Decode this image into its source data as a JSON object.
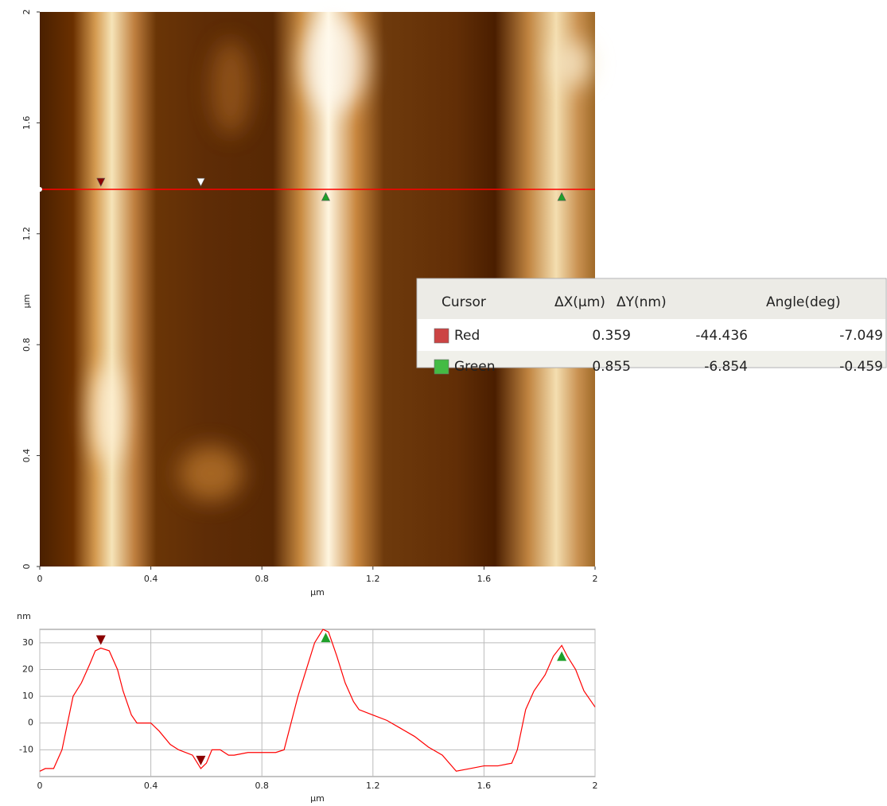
{
  "chart_data": {
    "type": "line",
    "yunit": "nm",
    "xlabel": "µm",
    "x": [
      0,
      0.02,
      0.05,
      0.08,
      0.1,
      0.12,
      0.15,
      0.18,
      0.2,
      0.22,
      0.25,
      0.28,
      0.3,
      0.33,
      0.35,
      0.4,
      0.43,
      0.47,
      0.5,
      0.55,
      0.58,
      0.6,
      0.62,
      0.65,
      0.68,
      0.7,
      0.75,
      0.8,
      0.85,
      0.88,
      0.9,
      0.93,
      0.96,
      0.99,
      1.02,
      1.04,
      1.07,
      1.1,
      1.13,
      1.15,
      1.2,
      1.25,
      1.3,
      1.35,
      1.4,
      1.45,
      1.5,
      1.55,
      1.6,
      1.65,
      1.7,
      1.72,
      1.75,
      1.78,
      1.82,
      1.85,
      1.88,
      1.9,
      1.93,
      1.96,
      2
    ],
    "series": [
      {
        "color": "#ff0000",
        "values": [
          -18,
          -17,
          -17,
          -10,
          0,
          10,
          15,
          22,
          27,
          28,
          27,
          20,
          12,
          3,
          0,
          0,
          -3,
          -8,
          -10,
          -12,
          -17,
          -15,
          -10,
          -10,
          -12,
          -12,
          -11,
          -11,
          -11,
          -10,
          -2,
          10,
          20,
          30,
          35,
          34,
          25,
          15,
          8,
          5,
          3,
          1,
          -2,
          -5,
          -9,
          -12,
          -18,
          -17,
          -16,
          -16,
          -15,
          -10,
          5,
          12,
          18,
          25,
          29,
          25,
          20,
          12,
          6
        ]
      }
    ],
    "xlim": [
      0,
      2
    ],
    "xticks": [
      0,
      0.4,
      0.8,
      1.2,
      1.6,
      2
    ],
    "ylim": [
      -20,
      35
    ],
    "yticks": [
      -10,
      0,
      10,
      20,
      30
    ],
    "grid": true,
    "cursors": [
      {
        "color": "#8b0000",
        "direction": "down",
        "image_fill": [
          "#8b0000",
          "#ffffff"
        ],
        "x": [
          0.22,
          0.58
        ],
        "y": [
          31,
          -14
        ]
      },
      {
        "color": "#1fa02a",
        "direction": "up",
        "image_fill": [
          "#1fa02a",
          "#1fa02a"
        ],
        "x": [
          1.03,
          1.88
        ],
        "y": [
          32,
          25
        ]
      }
    ]
  },
  "image": {
    "xlim": [
      0,
      2
    ],
    "ylim": [
      0,
      2
    ],
    "xticks": [
      0,
      0.4,
      0.8,
      1.2,
      1.6,
      2
    ],
    "yticks": [
      0,
      0.4,
      0.8,
      1.2,
      1.6,
      2
    ],
    "xlabel": "µm",
    "ylabel": "µm",
    "cursor_line_y": 1.36
  },
  "table": {
    "headers": [
      "Cursor",
      "ΔX(µm)",
      "ΔY(nm)",
      "Angle(deg)"
    ],
    "row_colors": [
      "#cc4444",
      "#44bb44"
    ],
    "rows": [
      [
        "Red",
        0.359,
        -44.436,
        -7.049
      ],
      [
        "Green",
        0.855,
        -6.854,
        -0.459
      ]
    ]
  }
}
